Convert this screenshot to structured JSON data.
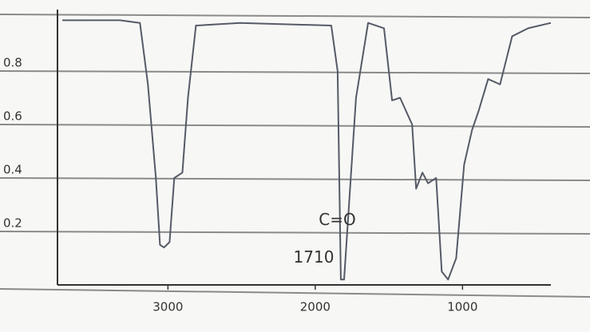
{
  "chart_data": {
    "type": "line",
    "x": [
      3717,
      3326,
      3190,
      3136,
      3082,
      3054,
      3027,
      2989,
      2957,
      2902,
      2864,
      2810,
      2511,
      1891,
      1848,
      1826,
      1804,
      1723,
      1641,
      1533,
      1478,
      1424,
      1342,
      1315,
      1272,
      1234,
      1179,
      1141,
      1098,
      1043,
      989,
      935,
      891,
      826,
      745,
      663,
      554,
      400
    ],
    "series": [
      {
        "color": "#555a66",
        "values": [
          0.99,
          0.99,
          0.98,
          0.75,
          0.4,
          0.15,
          0.14,
          0.16,
          0.4,
          0.42,
          0.7,
          0.97,
          0.98,
          0.97,
          0.8,
          0.02,
          0.02,
          0.7,
          0.98,
          0.96,
          0.69,
          0.7,
          0.6,
          0.36,
          0.42,
          0.38,
          0.4,
          0.05,
          0.02,
          0.1,
          0.45,
          0.58,
          0.65,
          0.77,
          0.75,
          0.93,
          0.96,
          0.98
        ]
      }
    ],
    "xlim": [
      3750,
      400
    ],
    "xticks": [
      3000,
      2000,
      1000
    ],
    "ylim": [
      0,
      1
    ],
    "yticks": [
      0.2,
      0.4,
      0.6,
      0.8
    ],
    "grid": true,
    "annotations": [
      {
        "text": "C=O",
        "x": 1850,
        "y": 0.24
      },
      {
        "text": "1710",
        "x": 2010,
        "y": 0.1
      }
    ]
  }
}
